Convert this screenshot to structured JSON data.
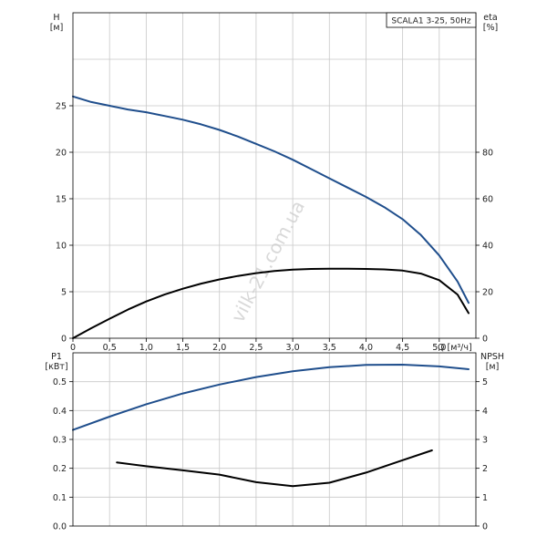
{
  "colors": {
    "blue": "#1f4e8c",
    "black": "#000000",
    "grid": "#c8c8c8"
  },
  "watermark": "vilk-21.com.ua",
  "chart_data": [
    {
      "type": "line",
      "title": "SCALA1 3-25, 50Hz",
      "xlabel": "Q [м³/ч]",
      "ylabel": "H\n[м]",
      "y2label": "eta\n[%]",
      "xlim": [
        0,
        5.5
      ],
      "ylim": [
        0,
        35
      ],
      "y2lim": [
        0,
        140
      ],
      "x_ticks": [
        "0",
        "0,5",
        "1,0",
        "1,5",
        "2,0",
        "2,5",
        "3,0",
        "3,5",
        "4,0",
        "4,5",
        "5,0"
      ],
      "y_ticks": [
        "0",
        "5",
        "10",
        "15",
        "20",
        "25"
      ],
      "y2_ticks": [
        "0",
        "20",
        "40",
        "60",
        "80"
      ],
      "grid": true,
      "series": [
        {
          "axis": "left",
          "color": "#1f4e8c",
          "x": [
            0,
            0.25,
            0.5,
            0.75,
            1.0,
            1.25,
            1.5,
            1.75,
            2.0,
            2.25,
            2.5,
            2.75,
            3.0,
            3.25,
            3.5,
            3.75,
            4.0,
            4.25,
            4.5,
            4.75,
            5.0,
            5.25,
            5.4
          ],
          "values": [
            26.0,
            25.4,
            25.0,
            24.6,
            24.3,
            23.9,
            23.5,
            23.0,
            22.4,
            21.7,
            20.9,
            20.1,
            19.2,
            18.2,
            17.2,
            16.2,
            15.2,
            14.1,
            12.8,
            11.1,
            8.9,
            6.1,
            3.8
          ]
        },
        {
          "axis": "right",
          "color": "#000000",
          "x": [
            0,
            0.25,
            0.5,
            0.75,
            1.0,
            1.25,
            1.5,
            1.75,
            2.0,
            2.25,
            2.5,
            2.75,
            3.0,
            3.25,
            3.5,
            3.75,
            4.0,
            4.25,
            4.5,
            4.75,
            5.0,
            5.25,
            5.4
          ],
          "values": [
            0,
            4.3,
            8.4,
            12.3,
            15.8,
            18.8,
            21.3,
            23.5,
            25.3,
            26.8,
            28.0,
            28.9,
            29.5,
            29.8,
            29.9,
            29.9,
            29.8,
            29.6,
            29.1,
            27.8,
            25.0,
            18.8,
            10.8
          ]
        }
      ]
    },
    {
      "type": "line",
      "xlim": [
        0,
        5.5
      ],
      "ylabel": "P1\n[кВт]",
      "y2label": "NPSH\n[м]",
      "ylim": [
        0,
        0.6
      ],
      "y2lim": [
        0,
        6
      ],
      "y_ticks": [
        "0.0",
        "0.1",
        "0.2",
        "0.3",
        "0.4",
        "0.5"
      ],
      "y2_ticks": [
        "0",
        "1",
        "2",
        "3",
        "4",
        "5"
      ],
      "grid": true,
      "series": [
        {
          "axis": "left",
          "color": "#1f4e8c",
          "x": [
            0,
            0.5,
            1.0,
            1.5,
            2.0,
            2.5,
            3.0,
            3.5,
            4.0,
            4.5,
            5.0,
            5.4
          ],
          "values": [
            0.333,
            0.379,
            0.422,
            0.459,
            0.49,
            0.516,
            0.536,
            0.55,
            0.558,
            0.559,
            0.553,
            0.543
          ]
        },
        {
          "axis": "right",
          "color": "#000000",
          "x": [
            0.6,
            1.0,
            1.5,
            2.0,
            2.5,
            3.0,
            3.5,
            4.0,
            4.5,
            4.9
          ],
          "values": [
            2.2,
            2.07,
            1.93,
            1.78,
            1.52,
            1.38,
            1.5,
            1.85,
            2.28,
            2.62
          ]
        }
      ]
    }
  ]
}
